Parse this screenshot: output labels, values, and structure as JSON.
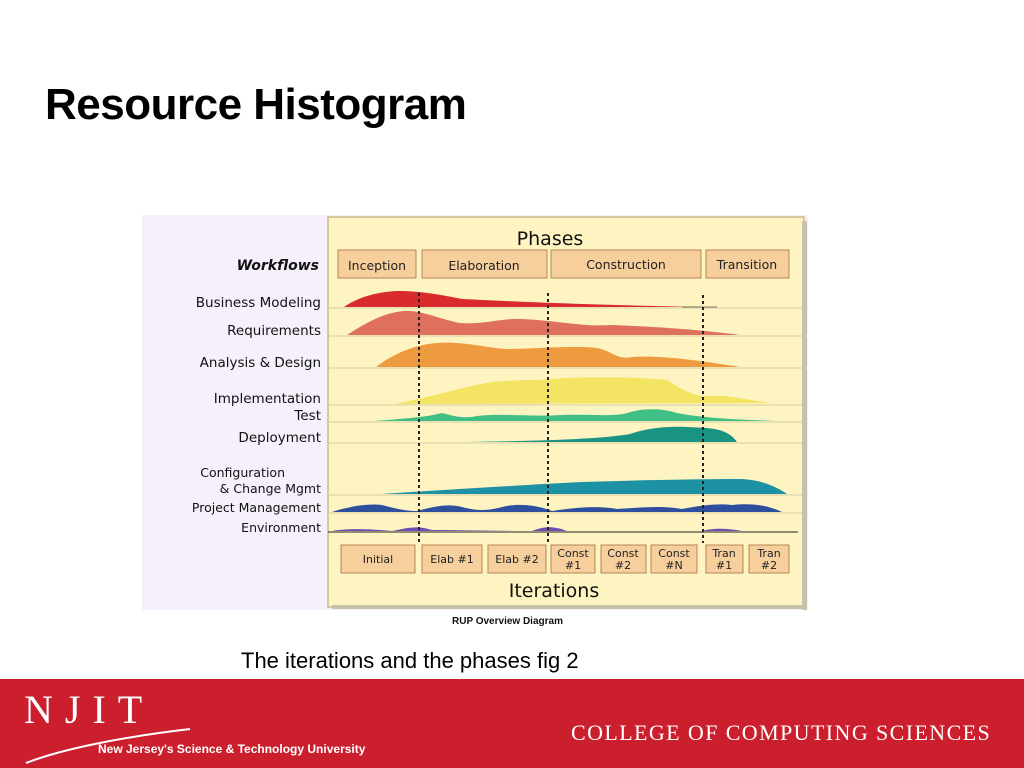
{
  "slide": {
    "title": "Resource Histogram",
    "caption": "The iterations and the phases fig 2"
  },
  "diagram": {
    "phases_title": "Phases",
    "workflows_label": "Workflows",
    "iterations_title": "Iterations",
    "diagram_label": "RUP Overview Diagram",
    "phases": [
      "Inception",
      "Elaboration",
      "Construction",
      "Transition"
    ],
    "workflows": [
      {
        "name": "Business Modeling",
        "color": "#d92b2b"
      },
      {
        "name": "Requirements",
        "color": "#e0705e"
      },
      {
        "name": "Analysis & Design",
        "color": "#ee9a3f"
      },
      {
        "name": "Implementation",
        "color": "#f3e464"
      },
      {
        "name": "Test",
        "color": "#3fbf86"
      },
      {
        "name": "Deployment",
        "color": "#1a9482"
      },
      {
        "name": "Configuration",
        "color": "#1d92a4"
      },
      {
        "name": "& Change Mgmt",
        "color": "#1d92a4"
      },
      {
        "name": "Project Management",
        "color": "#2e4f9e"
      },
      {
        "name": "Environment",
        "color": "#6a4fb0"
      }
    ],
    "iterations": [
      [
        "Initial"
      ],
      [
        "Elab #1"
      ],
      [
        "Elab #2"
      ],
      [
        "Const",
        "#1"
      ],
      [
        "Const",
        "#2"
      ],
      [
        "Const",
        "#N"
      ],
      [
        "Tran",
        "#1"
      ],
      [
        "Tran",
        "#2"
      ]
    ],
    "colors": {
      "panel_bg": "#fdf4c2",
      "box_fill": "#f6cf9c",
      "box_stroke": "#b6865a",
      "left_bg": "#f5f0fb"
    }
  },
  "footer": {
    "logo_text": "NJIT",
    "tagline": "New Jersey's Science & Technology University",
    "college": "COLLEGE OF COMPUTING SCIENCES",
    "bar_color": "#cc1f2e"
  }
}
